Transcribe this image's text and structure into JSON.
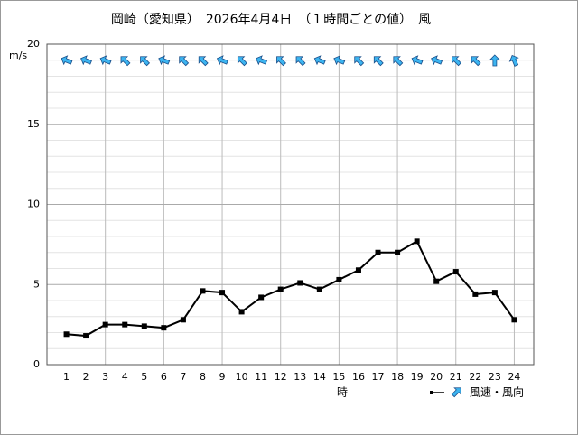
{
  "chart_data": {
    "type": "line",
    "title": "岡崎（愛知県）　2026年4月4日　（１時間ごとの値）　風",
    "y_unit": "m/s",
    "x_unit": "時",
    "legend_label": "風速・風向",
    "x": [
      1,
      2,
      3,
      4,
      5,
      6,
      7,
      8,
      9,
      10,
      11,
      12,
      13,
      14,
      15,
      16,
      17,
      18,
      19,
      20,
      21,
      22,
      23,
      24
    ],
    "xlim": [
      0,
      25
    ],
    "xgrid": [
      3,
      6,
      9,
      12,
      15,
      18,
      21,
      24
    ],
    "series": [
      {
        "name": "風速",
        "color": "#000000",
        "values": [
          1.9,
          1.8,
          2.5,
          2.5,
          2.4,
          2.3,
          2.8,
          4.6,
          4.5,
          3.3,
          4.2,
          4.7,
          5.1,
          4.7,
          5.3,
          5.9,
          7.0,
          7.0,
          7.7,
          5.2,
          5.8,
          4.4,
          4.5,
          2.8
        ]
      },
      {
        "name": "風向",
        "color": "#3cb4f0",
        "values": [
          292.5,
          292.5,
          292.5,
          315,
          315,
          292.5,
          315,
          315,
          292.5,
          315,
          292.5,
          315,
          315,
          292.5,
          292.5,
          315,
          315,
          315,
          292.5,
          292.5,
          315,
          315,
          0,
          337.5
        ]
      }
    ],
    "ylim": [
      0,
      20
    ],
    "yticks": [
      0,
      5,
      10,
      15,
      20
    ],
    "yminor": [
      1,
      2,
      3,
      4,
      6,
      7,
      8,
      9,
      11,
      12,
      13,
      14,
      16,
      17,
      18,
      19
    ],
    "grid": true
  }
}
